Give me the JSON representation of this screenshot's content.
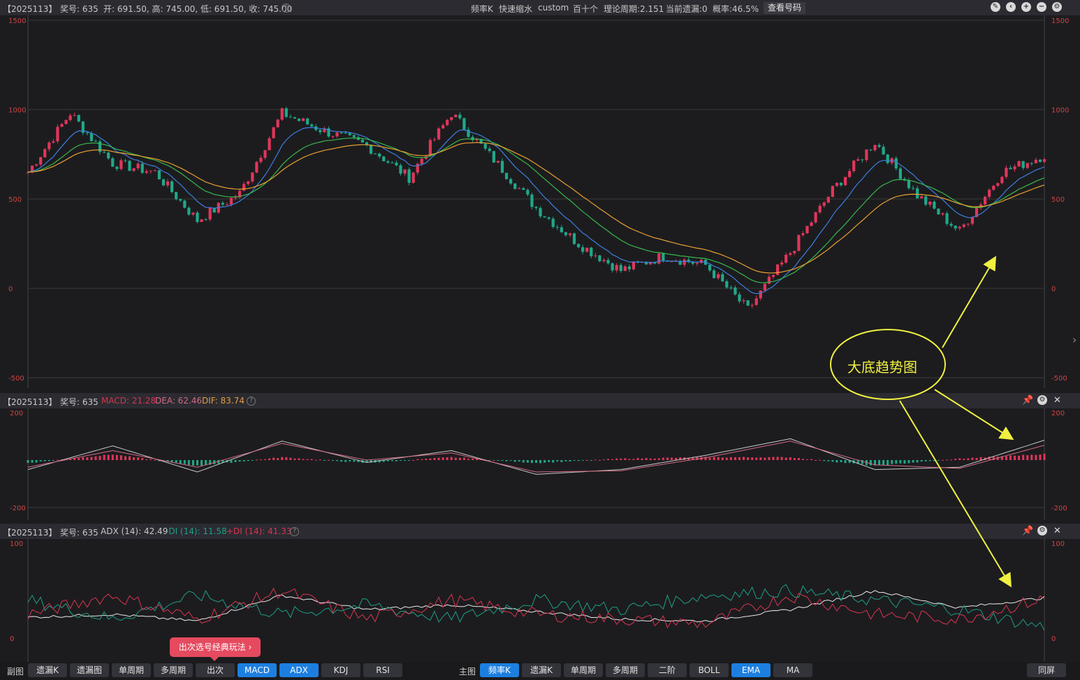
{
  "main": {
    "header": {
      "period": "【2025113】",
      "prize": "奖号: 635",
      "ohlc": "开: 691.50, 高: 745.00, 低: 691.50, 收: 745.00",
      "mode_items": [
        "频率K",
        "快速缩水",
        "custom",
        "百十个",
        "理论周期:2.151",
        "当前遗漏:0",
        "概率:46.5%"
      ],
      "view_button": "查看号码"
    },
    "axis_labels": [
      "1500",
      "1000",
      "500",
      "0",
      "-500"
    ],
    "annotation": "大底趋势图"
  },
  "macd": {
    "header": {
      "period": "【2025113】",
      "prize": "奖号: 635",
      "macd": "MACD: 21.28",
      "dea": "DEA: 62.46",
      "dif": "DIF: 83.74"
    },
    "axis_labels": [
      "200",
      "-200"
    ]
  },
  "adx": {
    "header": {
      "period": "【2025113】",
      "prize": "奖号: 635",
      "adx": "ADX (14): 42.49",
      "mdi": "-DI (14): 11.58",
      "pdi": "+DI (14): 41.33"
    },
    "axis_labels": [
      "100",
      "0"
    ]
  },
  "promo": "出次选号经典玩法 ›",
  "bottom_bar": {
    "sub_label": "副图",
    "sub_tabs": [
      {
        "label": "遗漏K",
        "active": false
      },
      {
        "label": "遗漏图",
        "active": false
      },
      {
        "label": "单周期",
        "active": false
      },
      {
        "label": "多周期",
        "active": false
      },
      {
        "label": "出次",
        "active": false
      },
      {
        "label": "MACD",
        "active": true
      },
      {
        "label": "ADX",
        "active": true
      },
      {
        "label": "KDJ",
        "active": false
      },
      {
        "label": "RSI",
        "active": false
      }
    ],
    "main_label": "主图",
    "main_tabs": [
      {
        "label": "频率K",
        "active": true
      },
      {
        "label": "遗漏K",
        "active": false
      },
      {
        "label": "单周期",
        "active": false
      },
      {
        "label": "多周期",
        "active": false
      },
      {
        "label": "二阶",
        "active": false
      },
      {
        "label": "BOLL",
        "active": false
      },
      {
        "label": "EMA",
        "active": true
      },
      {
        "label": "MA",
        "active": false
      }
    ],
    "fullscreen": "同屏"
  },
  "colors": {
    "up": "#e0365a",
    "down": "#20a888",
    "ema_fast": "#3d7fe0",
    "ema_mid": "#38b84a",
    "ema_slow": "#e8a030",
    "annotation": "#f0f040"
  },
  "chart_data": [
    {
      "type": "candlestick",
      "ylim": [
        -500,
        1500
      ],
      "series": [
        {
          "name": "close",
          "x": [
            0,
            10,
            20,
            30,
            40,
            50,
            60,
            70,
            80,
            90,
            100,
            110,
            120,
            130,
            140,
            150,
            160,
            170,
            180,
            190,
            200,
            210,
            220,
            230,
            240
          ],
          "values": [
            650,
            980,
            700,
            650,
            380,
            530,
            980,
            880,
            800,
            620,
            980,
            720,
            450,
            250,
            100,
            180,
            130,
            -120,
            200,
            550,
            820,
            520,
            320,
            650,
            745
          ]
        }
      ]
    },
    {
      "type": "line",
      "ylim": [
        -200,
        200
      ],
      "series": [
        {
          "name": "DIF",
          "x": [
            0,
            20,
            40,
            60,
            80,
            100,
            120,
            140,
            160,
            180,
            200,
            220,
            240
          ],
          "values": [
            -40,
            60,
            -50,
            80,
            -10,
            40,
            -60,
            -40,
            20,
            90,
            -40,
            -30,
            83.74
          ]
        },
        {
          "name": "DEA",
          "x": [
            0,
            20,
            40,
            60,
            80,
            100,
            120,
            140,
            160,
            180,
            200,
            220,
            240
          ],
          "values": [
            -30,
            40,
            -30,
            70,
            0,
            30,
            -50,
            -45,
            10,
            80,
            -20,
            -35,
            62.46
          ]
        }
      ]
    },
    {
      "type": "line",
      "ylim": [
        0,
        100
      ],
      "series": [
        {
          "name": "ADX",
          "x": [
            0,
            20,
            40,
            60,
            80,
            100,
            120,
            140,
            160,
            180,
            200,
            220,
            240
          ],
          "values": [
            22,
            25,
            18,
            45,
            30,
            35,
            28,
            20,
            18,
            30,
            50,
            32,
            42.49
          ]
        },
        {
          "name": "-DI",
          "x": [
            0,
            20,
            40,
            60,
            80,
            100,
            120,
            140,
            160,
            180,
            200,
            220,
            240
          ],
          "values": [
            40,
            20,
            45,
            25,
            35,
            20,
            40,
            30,
            45,
            50,
            40,
            30,
            11.58
          ]
        },
        {
          "name": "+DI",
          "x": [
            0,
            20,
            40,
            60,
            80,
            100,
            120,
            140,
            160,
            180,
            200,
            220,
            240
          ],
          "values": [
            25,
            45,
            20,
            50,
            20,
            40,
            25,
            20,
            15,
            45,
            25,
            20,
            41.33
          ]
        }
      ]
    }
  ]
}
